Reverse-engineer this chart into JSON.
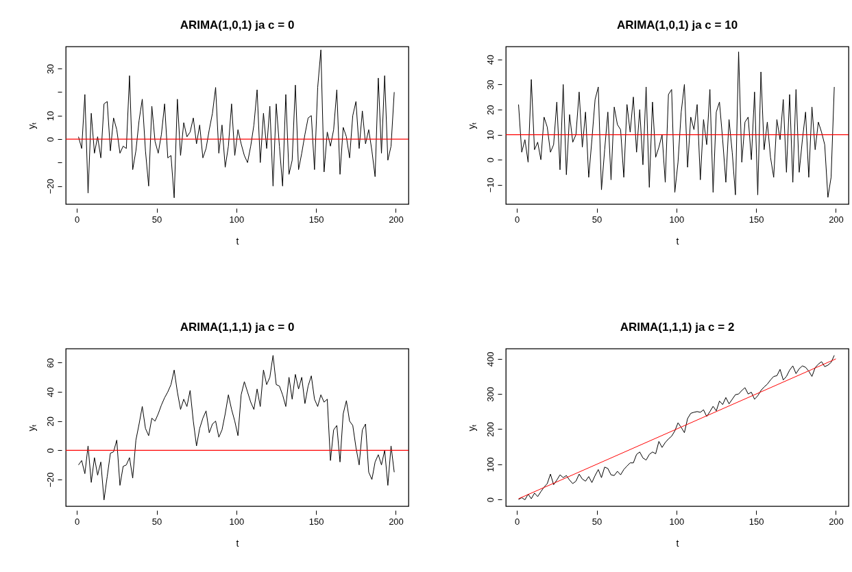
{
  "chart_data": [
    {
      "type": "line",
      "title": "ARIMA(1,0,1) ja c = 0",
      "xlabel": "t",
      "ylabel": "yₜ",
      "xlim": [
        -6.96,
        207.96
      ],
      "xticks": [
        0,
        50,
        100,
        150,
        200
      ],
      "ylim": [
        -27.7,
        39.4
      ],
      "yticks": [
        -20,
        {
          "value": -10,
          "label": null
        },
        0,
        10,
        {
          "value": 20,
          "label": null
        },
        30
      ],
      "grid": false,
      "x": [
        1,
        3,
        5,
        7,
        9,
        11,
        13,
        15,
        17,
        19,
        21,
        23,
        25,
        27,
        29,
        31,
        33,
        35,
        37,
        39,
        41,
        43,
        45,
        47,
        49,
        51,
        53,
        55,
        57,
        59,
        61,
        63,
        65,
        67,
        69,
        71,
        73,
        75,
        77,
        79,
        81,
        83,
        85,
        87,
        89,
        91,
        93,
        95,
        97,
        99,
        101,
        103,
        105,
        107,
        109,
        111,
        113,
        115,
        117,
        119,
        121,
        123,
        125,
        127,
        129,
        131,
        133,
        135,
        137,
        139,
        141,
        143,
        145,
        147,
        149,
        151,
        153,
        155,
        157,
        159,
        161,
        163,
        165,
        167,
        169,
        171,
        173,
        175,
        177,
        179,
        181,
        183,
        185,
        187,
        189,
        191,
        193,
        195,
        197,
        199
      ],
      "series": [
        {
          "color": "#000000",
          "values": [
            1,
            -4,
            19,
            -23,
            11,
            -6,
            1,
            -8,
            15,
            16,
            -5,
            9,
            4,
            -6,
            -3,
            -4,
            27,
            -13,
            -5,
            8,
            17,
            -5,
            -20,
            14,
            -1,
            -6,
            2,
            15,
            -8,
            -7,
            -25,
            17,
            -7,
            7,
            1,
            3,
            9,
            -2,
            6,
            -8,
            -4,
            4,
            11,
            22,
            -6,
            6,
            -12,
            -3,
            15,
            -7,
            4,
            -2,
            -7,
            -10,
            -3,
            6,
            21,
            -10,
            11,
            -4,
            14,
            -20,
            15,
            -3,
            -20,
            19,
            -15,
            -9,
            23,
            -13,
            -6,
            2,
            9,
            10,
            -13,
            22,
            38,
            -14,
            3,
            -3,
            4,
            21,
            -15,
            5,
            1,
            -8,
            10,
            16,
            -4,
            12,
            -2,
            4,
            -5,
            -16,
            26,
            -6,
            27,
            -9,
            -3,
            20
          ]
        }
      ],
      "ref_lines": [
        {
          "axis": "y",
          "value": 0,
          "color": "#ff0000"
        }
      ]
    },
    {
      "type": "line",
      "title": "ARIMA(1,0,1) ja c = 10",
      "xlabel": "t",
      "ylabel": "yₜ",
      "xlim": [
        -6.96,
        207.96
      ],
      "xticks": [
        0,
        50,
        100,
        150,
        200
      ],
      "ylim": [
        -17.7,
        45.1
      ],
      "yticks": [
        -10,
        0,
        10,
        20,
        30,
        40
      ],
      "grid": false,
      "x": [
        1,
        3,
        5,
        7,
        9,
        11,
        13,
        15,
        17,
        19,
        21,
        23,
        25,
        27,
        29,
        31,
        33,
        35,
        37,
        39,
        41,
        43,
        45,
        47,
        49,
        51,
        53,
        55,
        57,
        59,
        61,
        63,
        65,
        67,
        69,
        71,
        73,
        75,
        77,
        79,
        81,
        83,
        85,
        87,
        89,
        91,
        93,
        95,
        97,
        99,
        101,
        103,
        105,
        107,
        109,
        111,
        113,
        115,
        117,
        119,
        121,
        123,
        125,
        127,
        129,
        131,
        133,
        135,
        137,
        139,
        141,
        143,
        145,
        147,
        149,
        151,
        153,
        155,
        157,
        159,
        161,
        163,
        165,
        167,
        169,
        171,
        173,
        175,
        177,
        179,
        181,
        183,
        185,
        187,
        189,
        191,
        193,
        195,
        197,
        199
      ],
      "series": [
        {
          "color": "#000000",
          "values": [
            22,
            3,
            8,
            -1,
            32,
            4,
            7,
            0,
            17,
            13,
            3,
            6,
            23,
            -4,
            30,
            -6,
            18,
            7,
            10,
            27,
            5,
            19,
            -7,
            8,
            24,
            29,
            -12,
            4,
            19,
            -8,
            21,
            14,
            12,
            -7,
            22,
            11,
            25,
            3,
            20,
            -2,
            29,
            -11,
            23,
            1,
            5,
            10,
            -9,
            26,
            28,
            -13,
            -1,
            19,
            30,
            -3,
            17,
            12,
            22,
            -8,
            16,
            6,
            28,
            -13,
            19,
            23,
            8,
            -9,
            16,
            3,
            -14,
            43,
            -1,
            15,
            17,
            0,
            27,
            -14,
            35,
            4,
            15,
            1,
            -7,
            16,
            8,
            24,
            -5,
            26,
            -9,
            28,
            -5,
            8,
            19,
            -7,
            21,
            4,
            15,
            11,
            6,
            -15,
            -7,
            29
          ]
        }
      ],
      "ref_lines": [
        {
          "axis": "y",
          "value": 10,
          "color": "#ff0000"
        }
      ]
    },
    {
      "type": "line",
      "title": "ARIMA(1,1,1) ja c = 0",
      "xlabel": "t",
      "ylabel": "yₜ",
      "xlim": [
        -6.96,
        207.96
      ],
      "xticks": [
        0,
        50,
        100,
        150,
        200
      ],
      "ylim": [
        -38.3,
        69.6
      ],
      "yticks": [
        -20,
        0,
        20,
        40,
        60
      ],
      "grid": false,
      "x": [
        1,
        3,
        5,
        7,
        9,
        11,
        13,
        15,
        17,
        19,
        21,
        23,
        25,
        27,
        29,
        31,
        33,
        35,
        37,
        39,
        41,
        43,
        45,
        47,
        49,
        51,
        53,
        55,
        57,
        59,
        61,
        63,
        65,
        67,
        69,
        71,
        73,
        75,
        77,
        79,
        81,
        83,
        85,
        87,
        89,
        91,
        93,
        95,
        97,
        99,
        101,
        103,
        105,
        107,
        109,
        111,
        113,
        115,
        117,
        119,
        121,
        123,
        125,
        127,
        129,
        131,
        133,
        135,
        137,
        139,
        141,
        143,
        145,
        147,
        149,
        151,
        153,
        155,
        157,
        159,
        161,
        163,
        165,
        167,
        169,
        171,
        173,
        175,
        177,
        179,
        181,
        183,
        185,
        187,
        189,
        191,
        193,
        195,
        197,
        199
      ],
      "series": [
        {
          "color": "#000000",
          "values": [
            -10,
            -7,
            -16,
            3,
            -22,
            -5,
            -17,
            -8,
            -34,
            -18,
            -2,
            -1,
            7,
            -24,
            -11,
            -10,
            -5,
            -19,
            7,
            18,
            30,
            15,
            10,
            22,
            20,
            25,
            31,
            36,
            40,
            45,
            55,
            40,
            28,
            35,
            30,
            41,
            20,
            3,
            15,
            22,
            27,
            12,
            18,
            20,
            9,
            14,
            25,
            38,
            28,
            20,
            10,
            38,
            47,
            40,
            33,
            28,
            42,
            30,
            55,
            45,
            50,
            65,
            45,
            44,
            38,
            30,
            50,
            35,
            52,
            42,
            50,
            32,
            44,
            51,
            35,
            30,
            38,
            33,
            35,
            -7,
            14,
            17,
            -8,
            25,
            34,
            20,
            17,
            2,
            -10,
            14,
            18,
            -15,
            -20,
            -8,
            -3,
            -10,
            0,
            -24,
            3,
            -15
          ]
        }
      ],
      "ref_lines": [
        {
          "axis": "y",
          "value": 0,
          "color": "#ff0000"
        }
      ]
    },
    {
      "type": "line",
      "title": "ARIMA(1,1,1) ja c = 2",
      "xlabel": "t",
      "ylabel": "yₜ",
      "xlim": [
        -6.96,
        207.96
      ],
      "xticks": [
        0,
        50,
        100,
        150,
        200
      ],
      "ylim": [
        -19.4,
        429
      ],
      "yticks": [
        0,
        100,
        200,
        300,
        400
      ],
      "grid": false,
      "x": [
        1,
        3,
        5,
        7,
        9,
        11,
        13,
        15,
        17,
        19,
        21,
        23,
        25,
        27,
        29,
        31,
        33,
        35,
        37,
        39,
        41,
        43,
        45,
        47,
        49,
        51,
        53,
        55,
        57,
        59,
        61,
        63,
        65,
        67,
        69,
        71,
        73,
        75,
        77,
        79,
        81,
        83,
        85,
        87,
        89,
        91,
        93,
        95,
        97,
        99,
        101,
        103,
        105,
        107,
        109,
        111,
        113,
        115,
        117,
        119,
        121,
        123,
        125,
        127,
        129,
        131,
        133,
        135,
        137,
        139,
        141,
        143,
        145,
        147,
        149,
        151,
        153,
        155,
        157,
        159,
        161,
        163,
        165,
        167,
        169,
        171,
        173,
        175,
        177,
        179,
        181,
        183,
        185,
        187,
        189,
        191,
        193,
        195,
        197,
        199
      ],
      "series": [
        {
          "color": "#000000",
          "values": [
            0,
            5,
            -1,
            15,
            2,
            18,
            8,
            22,
            35,
            45,
            72,
            42,
            55,
            70,
            62,
            68,
            55,
            45,
            52,
            72,
            58,
            52,
            65,
            48,
            68,
            85,
            62,
            92,
            88,
            70,
            68,
            80,
            70,
            85,
            95,
            104,
            104,
            128,
            135,
            118,
            112,
            128,
            135,
            130,
            165,
            148,
            162,
            172,
            180,
            195,
            218,
            205,
            190,
            230,
            245,
            248,
            250,
            248,
            255,
            236,
            250,
            265,
            252,
            280,
            270,
            290,
            272,
            285,
            298,
            300,
            310,
            318,
            300,
            305,
            285,
            295,
            310,
            320,
            328,
            340,
            350,
            352,
            370,
            340,
            350,
            368,
            380,
            358,
            372,
            380,
            376,
            365,
            350,
            375,
            385,
            392,
            378,
            382,
            390,
            410
          ]
        },
        {
          "type": "line",
          "color": "#ff0000",
          "x": [
            1,
            200
          ],
          "values": [
            2,
            400
          ]
        }
      ]
    }
  ]
}
